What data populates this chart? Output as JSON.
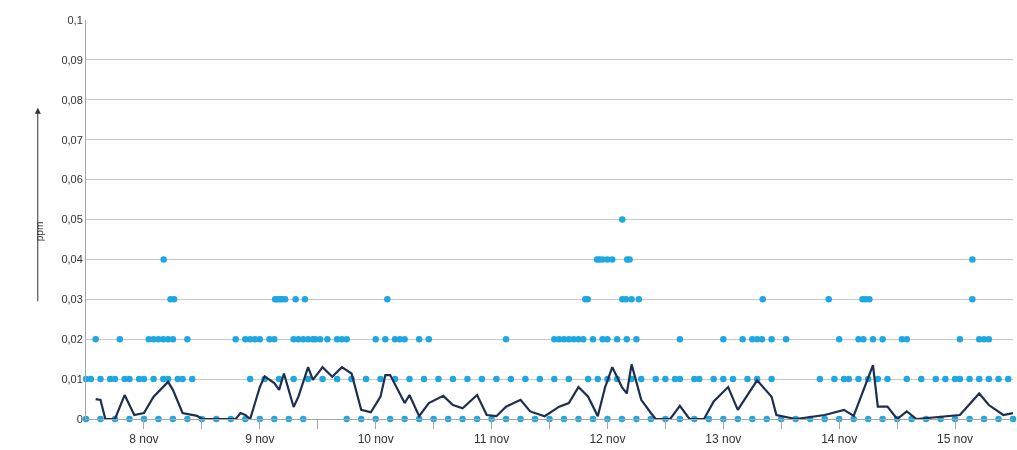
{
  "chart_data": {
    "type": "scatter",
    "ylabel": "ppm",
    "xlim": [
      "--11-08",
      "--11-16"
    ],
    "xticks": [
      {
        "value": "--11-08T12:00",
        "label": "8 nov"
      },
      {
        "value": "--11-09",
        "label": null
      },
      {
        "value": "--11-09T12:00",
        "label": "9 nov"
      },
      {
        "value": "--11-10",
        "label": null
      },
      {
        "value": "--11-10T12:00",
        "label": "10 nov"
      },
      {
        "value": "--11-11",
        "label": null
      },
      {
        "value": "--11-11T12:00",
        "label": "11 nov"
      },
      {
        "value": "--11-12",
        "label": null
      },
      {
        "value": "--11-12T12:00",
        "label": "12 nov"
      },
      {
        "value": "--11-13",
        "label": null
      },
      {
        "value": "--11-13T12:00",
        "label": "13 nov"
      },
      {
        "value": "--11-14",
        "label": null
      },
      {
        "value": "--11-14T12:00",
        "label": "14 nov"
      },
      {
        "value": "--11-15",
        "label": null
      },
      {
        "value": "--11-15T12:00",
        "label": "15 nov"
      }
    ],
    "ylim": [
      0,
      0.1
    ],
    "yticks": [
      0,
      {
        "value": 0.01,
        "label": "0,01"
      },
      {
        "value": 0.02,
        "label": "0,02"
      },
      {
        "value": 0.03,
        "label": "0,03"
      },
      {
        "value": 0.04,
        "label": "0,04"
      },
      {
        "value": 0.05,
        "label": "0,05"
      },
      {
        "value": 0.06,
        "label": "0,06"
      },
      {
        "value": 0.07,
        "label": "0,07"
      },
      {
        "value": 0.08,
        "label": "0,08"
      },
      {
        "value": 0.09,
        "label": "0,09"
      },
      {
        "value": 0.1,
        "label": "0,1"
      }
    ],
    "grid": "y",
    "marker": "circle",
    "series": [
      {
        "color": "#1ea7e1",
        "x": [
          "--11-08T00:00",
          "--11-08T03:00",
          "--11-08T06:00",
          "--11-08T09:00",
          "--11-08T12:00",
          "--11-08T15:00",
          "--11-08T18:00",
          "--11-08T21:00",
          "--11-09T00:00",
          "--11-09T03:00",
          "--11-09T06:00",
          "--11-09T09:00",
          "--11-09T12:00",
          "--11-09T15:00",
          "--11-09T18:00",
          "--11-09T21:00",
          "--11-10T06:00",
          "--11-10T09:00",
          "--11-10T12:00",
          "--11-10T15:00",
          "--11-10T18:00",
          "--11-10T21:00",
          "--11-11T00:00",
          "--11-11T03:00",
          "--11-11T06:00",
          "--11-11T09:00",
          "--11-11T12:00",
          "--11-11T15:00",
          "--11-11T18:00",
          "--11-11T21:00",
          "--11-12T00:00",
          "--11-12T03:00",
          "--11-12T06:00",
          "--11-12T09:00",
          "--11-12T12:00",
          "--11-12T15:00",
          "--11-12T18:00",
          "--11-12T21:00",
          "--11-13T00:00",
          "--11-13T03:00",
          "--11-13T06:00",
          "--11-13T09:00",
          "--11-13T12:00",
          "--11-13T15:00",
          "--11-13T18:00",
          "--11-13T21:00",
          "--11-14T00:00",
          "--11-14T03:00",
          "--11-14T06:00",
          "--11-14T09:00",
          "--11-14T12:00",
          "--11-14T15:00",
          "--11-14T18:00",
          "--11-14T21:00",
          "--11-15T00:00",
          "--11-15T03:00",
          "--11-15T06:00",
          "--11-15T09:00",
          "--11-15T12:00",
          "--11-15T15:00",
          "--11-15T18:00",
          "--11-15T21:00",
          "--11-16T00:00",
          "--11-08T00:00",
          "--11-08T01:00",
          "--11-08T03:00",
          "--11-08T05:00",
          "--11-08T06:00",
          "--11-08T08:00",
          "--11-08T09:00",
          "--11-08T11:00",
          "--11-08T12:00",
          "--11-08T14:00",
          "--11-08T16:00",
          "--11-08T17:00",
          "--11-08T19:00",
          "--11-08T20:00",
          "--11-08T22:00",
          "--11-09T10:00",
          "--11-09T13:00",
          "--11-09T16:00",
          "--11-09T19:00",
          "--11-09T22:00",
          "--11-10T01:00",
          "--11-10T04:00",
          "--11-10T07:00",
          "--11-10T10:00",
          "--11-10T13:00",
          "--11-10T16:00",
          "--11-10T19:00",
          "--11-10T22:00",
          "--11-11T01:00",
          "--11-11T04:00",
          "--11-11T07:00",
          "--11-11T10:00",
          "--11-11T13:00",
          "--11-11T16:00",
          "--11-11T19:00",
          "--11-11T22:00",
          "--11-12T01:00",
          "--11-12T04:00",
          "--11-12T08:00",
          "--11-12T10:00",
          "--11-12T12:00",
          "--11-12T14:00",
          "--11-12T17:00",
          "--11-12T19:00",
          "--11-12T22:00",
          "--11-13T00:00",
          "--11-13T02:00",
          "--11-13T03:00",
          "--11-13T06:00",
          "--11-13T07:00",
          "--11-13T10:00",
          "--11-13T12:00",
          "--11-13T14:00",
          "--11-13T17:00",
          "--11-13T19:00",
          "--11-13T22:00",
          "--11-14T08:00",
          "--11-14T11:00",
          "--11-14T13:00",
          "--11-14T14:00",
          "--11-14T16:00",
          "--11-14T18:00",
          "--11-14T20:00",
          "--11-14T22:00",
          "--11-15T02:00",
          "--11-15T05:00",
          "--11-15T08:00",
          "--11-15T10:00",
          "--11-15T12:00",
          "--11-15T13:00",
          "--11-15T15:00",
          "--11-15T17:00",
          "--11-15T19:00",
          "--11-15T21:00",
          "--11-15T23:00",
          "--11-08T02:00",
          "--11-08T07:00",
          "--11-08T13:00",
          "--11-08T14:00",
          "--11-08T15:00",
          "--11-08T16:00",
          "--11-08T17:00",
          "--11-08T18:00",
          "--11-08T21:00",
          "--11-09T07:00",
          "--11-09T09:00",
          "--11-09T10:00",
          "--11-09T11:00",
          "--11-09T12:00",
          "--11-09T14:00",
          "--11-09T15:00",
          "--11-09T19:00",
          "--11-09T20:00",
          "--11-09T21:00",
          "--11-09T22:00",
          "--11-09T23:00",
          "--11-09T23:30",
          "--11-10T00:30",
          "--11-10T02:00",
          "--11-10T04:00",
          "--11-10T05:00",
          "--11-10T06:00",
          "--11-10T12:00",
          "--11-10T14:00",
          "--11-10T16:00",
          "--11-10T17:00",
          "--11-10T18:00",
          "--11-10T21:00",
          "--11-10T23:00",
          "--11-11T15:00",
          "--11-12T01:00",
          "--11-12T02:00",
          "--11-12T03:00",
          "--11-12T04:00",
          "--11-12T05:00",
          "--11-12T06:00",
          "--11-12T07:00",
          "--11-12T09:00",
          "--11-12T11:00",
          "--11-12T12:00",
          "--11-12T14:00",
          "--11-12T16:00",
          "--11-12T18:00",
          "--11-13T03:00",
          "--11-13T12:00",
          "--11-13T16:00",
          "--11-13T18:00",
          "--11-13T19:00",
          "--11-13T20:00",
          "--11-13T22:00",
          "--11-14T01:00",
          "--11-14T12:00",
          "--11-14T16:00",
          "--11-14T17:00",
          "--11-14T19:00",
          "--11-14T21:00",
          "--11-15T01:00",
          "--11-15T02:00",
          "--11-15T13:00",
          "--11-15T17:00",
          "--11-15T18:00",
          "--11-15T19:00",
          "--11-08T17:30",
          "--11-08T18:15",
          "--11-09T15:10",
          "--11-09T15:35",
          "--11-09T16:05",
          "--11-09T16:35",
          "--11-09T17:15",
          "--11-09T19:25",
          "--11-09T21:20",
          "--11-10T14:25",
          "--11-12T07:25",
          "--11-12T07:55",
          "--11-12T15:05",
          "--11-12T15:50",
          "--11-12T17:00",
          "--11-12T18:30",
          "--11-13T20:10",
          "--11-14T09:50",
          "--11-14T16:50",
          "--11-14T17:30",
          "--11-14T18:15",
          "--11-15T15:35",
          "--11-08T16:05",
          "--11-12T09:50",
          "--11-12T10:20",
          "--11-12T11:00",
          "--11-12T12:00",
          "--11-12T13:00",
          "--11-12T16:05",
          "--11-12T16:35",
          "--11-15T15:35",
          "--11-12T15:05"
        ],
        "values": [
          0,
          0,
          0,
          0,
          0,
          0,
          0,
          0,
          0,
          0,
          0,
          0,
          0,
          0,
          0,
          0,
          0,
          0,
          0,
          0,
          0,
          0,
          0,
          0,
          0,
          0,
          0,
          0,
          0,
          0,
          0,
          0,
          0,
          0,
          0,
          0,
          0,
          0,
          0,
          0,
          0,
          0,
          0,
          0,
          0,
          0,
          0,
          0,
          0,
          0,
          0,
          0,
          0,
          0,
          0,
          0,
          0,
          0,
          0,
          0,
          0,
          0,
          0,
          0.01,
          0.01,
          0.01,
          0.01,
          0.01,
          0.01,
          0.01,
          0.01,
          0.01,
          0.01,
          0.01,
          0.01,
          0.01,
          0.01,
          0.01,
          0.01,
          0.01,
          0.01,
          0.01,
          0.01,
          0.01,
          0.01,
          0.01,
          0.01,
          0.01,
          0.01,
          0.01,
          0.01,
          0.01,
          0.01,
          0.01,
          0.01,
          0.01,
          0.01,
          0.01,
          0.01,
          0.01,
          0.01,
          0.01,
          0.01,
          0.01,
          0.01,
          0.01,
          0.01,
          0.01,
          0.01,
          0.01,
          0.01,
          0.01,
          0.01,
          0.01,
          0.01,
          0.01,
          0.01,
          0.01,
          0.01,
          0.01,
          0.01,
          0.01,
          0.01,
          0.01,
          0.01,
          0.01,
          0.01,
          0.01,
          0.01,
          0.01,
          0.01,
          0.01,
          0.01,
          0.01,
          0.01,
          0.01,
          0.01,
          0.01,
          0.02,
          0.02,
          0.02,
          0.02,
          0.02,
          0.02,
          0.02,
          0.02,
          0.02,
          0.02,
          0.02,
          0.02,
          0.02,
          0.02,
          0.02,
          0.02,
          0.02,
          0.02,
          0.02,
          0.02,
          0.02,
          0.02,
          0.02,
          0.02,
          0.02,
          0.02,
          0.02,
          0.02,
          0.02,
          0.02,
          0.02,
          0.02,
          0.02,
          0.02,
          0.02,
          0.02,
          0.02,
          0.02,
          0.02,
          0.02,
          0.02,
          0.02,
          0.02,
          0.02,
          0.02,
          0.02,
          0.02,
          0.02,
          0.02,
          0.02,
          0.02,
          0.02,
          0.02,
          0.02,
          0.02,
          0.02,
          0.02,
          0.02,
          0.02,
          0.02,
          0.02,
          0.02,
          0.02,
          0.02,
          0.02,
          0.02,
          0.02,
          0.03,
          0.03,
          0.03,
          0.03,
          0.03,
          0.03,
          0.03,
          0.03,
          0.03,
          0.03,
          0.03,
          0.03,
          0.03,
          0.03,
          0.03,
          0.03,
          0.03,
          0.03,
          0.03,
          0.03,
          0.03,
          0.03,
          0.04,
          0.04,
          0.04,
          0.04,
          0.04,
          0.04,
          0.04,
          0.04,
          0.04,
          0.05
        ]
      },
      {
        "type": "line",
        "marker": "none",
        "line_style": "solid",
        "color": "#1c2f4f",
        "x": [
          "--11-08T02:00",
          "--11-08T03:00",
          "--11-08T04:00",
          "--11-08T06:00",
          "--11-08T08:00",
          "--11-08T10:00",
          "--11-08T12:00",
          "--11-08T14:00",
          "--11-08T17:00",
          "--11-08T18:00",
          "--11-08T20:00",
          "--11-08T23:00",
          "--11-09T00:00",
          "--11-09T07:00",
          "--11-09T08:00",
          "--11-09T09:00",
          "--11-09T10:00",
          "--11-09T12:00",
          "--11-09T13:00",
          "--11-09T15:00",
          "--11-09T16:00",
          "--11-09T17:00",
          "--11-09T19:00",
          "--11-09T20:00",
          "--11-09T22:00",
          "--11-09T23:00",
          "--11-10T01:00",
          "--11-10T03:00",
          "--11-10T05:00",
          "--11-10T07:00",
          "--11-10T09:00",
          "--11-10T11:00",
          "--11-10T13:00",
          "--11-10T14:00",
          "--11-10T15:00",
          "--11-10T18:00",
          "--11-10T19:00",
          "--11-10T21:00",
          "--11-10T23:00",
          "--11-11T02:00",
          "--11-11T04:00",
          "--11-11T06:00",
          "--11-11T09:00",
          "--11-11T11:00",
          "--11-11T13:00",
          "--11-11T15:00",
          "--11-11T18:00",
          "--11-11T20:00",
          "--11-11T23:00",
          "--11-12T02:00",
          "--11-12T04:00",
          "--11-12T06:00",
          "--11-12T08:00",
          "--11-12T10:00",
          "--11-12T11:30",
          "--11-12T13:00",
          "--11-12T15:00",
          "--11-12T16:00",
          "--11-12T17:00",
          "--11-12T19:00",
          "--11-12T21:00",
          "--11-12T22:00",
          "--11-13T01:00",
          "--11-13T03:00",
          "--11-13T05:00",
          "--11-13T08:00",
          "--11-13T10:00",
          "--11-13T13:00",
          "--11-13T15:00",
          "--11-13T19:00",
          "--11-13T22:00",
          "--11-13T23:00",
          "--11-14T03:00",
          "--11-14T09:00",
          "--11-14T13:00",
          "--11-14T15:00",
          "--11-14T19:00",
          "--11-14T20:00",
          "--11-14T22:00",
          "--11-15T00:00",
          "--11-15T02:00",
          "--11-15T04:00",
          "--11-15T13:00",
          "--11-15T17:00",
          "--11-15T19:00",
          "--11-15T22:00",
          "--11-16T00:00"
        ],
        "values": [
          0.005,
          0.0048,
          0,
          0,
          0.006,
          0.001,
          0.0015,
          0.0056,
          0.0093,
          0.0073,
          0.0015,
          0.0008,
          0,
          0,
          0.0015,
          0.001,
          0,
          0.008,
          0.0107,
          0.009,
          0.0073,
          0.0114,
          0.003,
          0.0056,
          0.013,
          0.0098,
          0.013,
          0.0106,
          0.013,
          0.0114,
          0.0023,
          0.0017,
          0.0056,
          0.011,
          0.011,
          0.004,
          0.006,
          0.0007,
          0.004,
          0.0058,
          0.0035,
          0.0027,
          0.006,
          0.001,
          0.0007,
          0.0031,
          0.0048,
          0.0019,
          0.0007,
          0.0031,
          0.004,
          0.008,
          0.0056,
          0.0007,
          0.0079,
          0.013,
          0.008,
          0.0064,
          0.0137,
          0.0048,
          0.0015,
          0,
          0,
          0.0033,
          0,
          0,
          0.0044,
          0.008,
          0.0023,
          0.0097,
          0.0056,
          0.001,
          0,
          0.001,
          0.0023,
          0.0008,
          0.0135,
          0.0031,
          0.0031,
          0,
          0.0019,
          0,
          0.001,
          0.0064,
          0.0035,
          0.001,
          0.0015
        ]
      }
    ]
  }
}
